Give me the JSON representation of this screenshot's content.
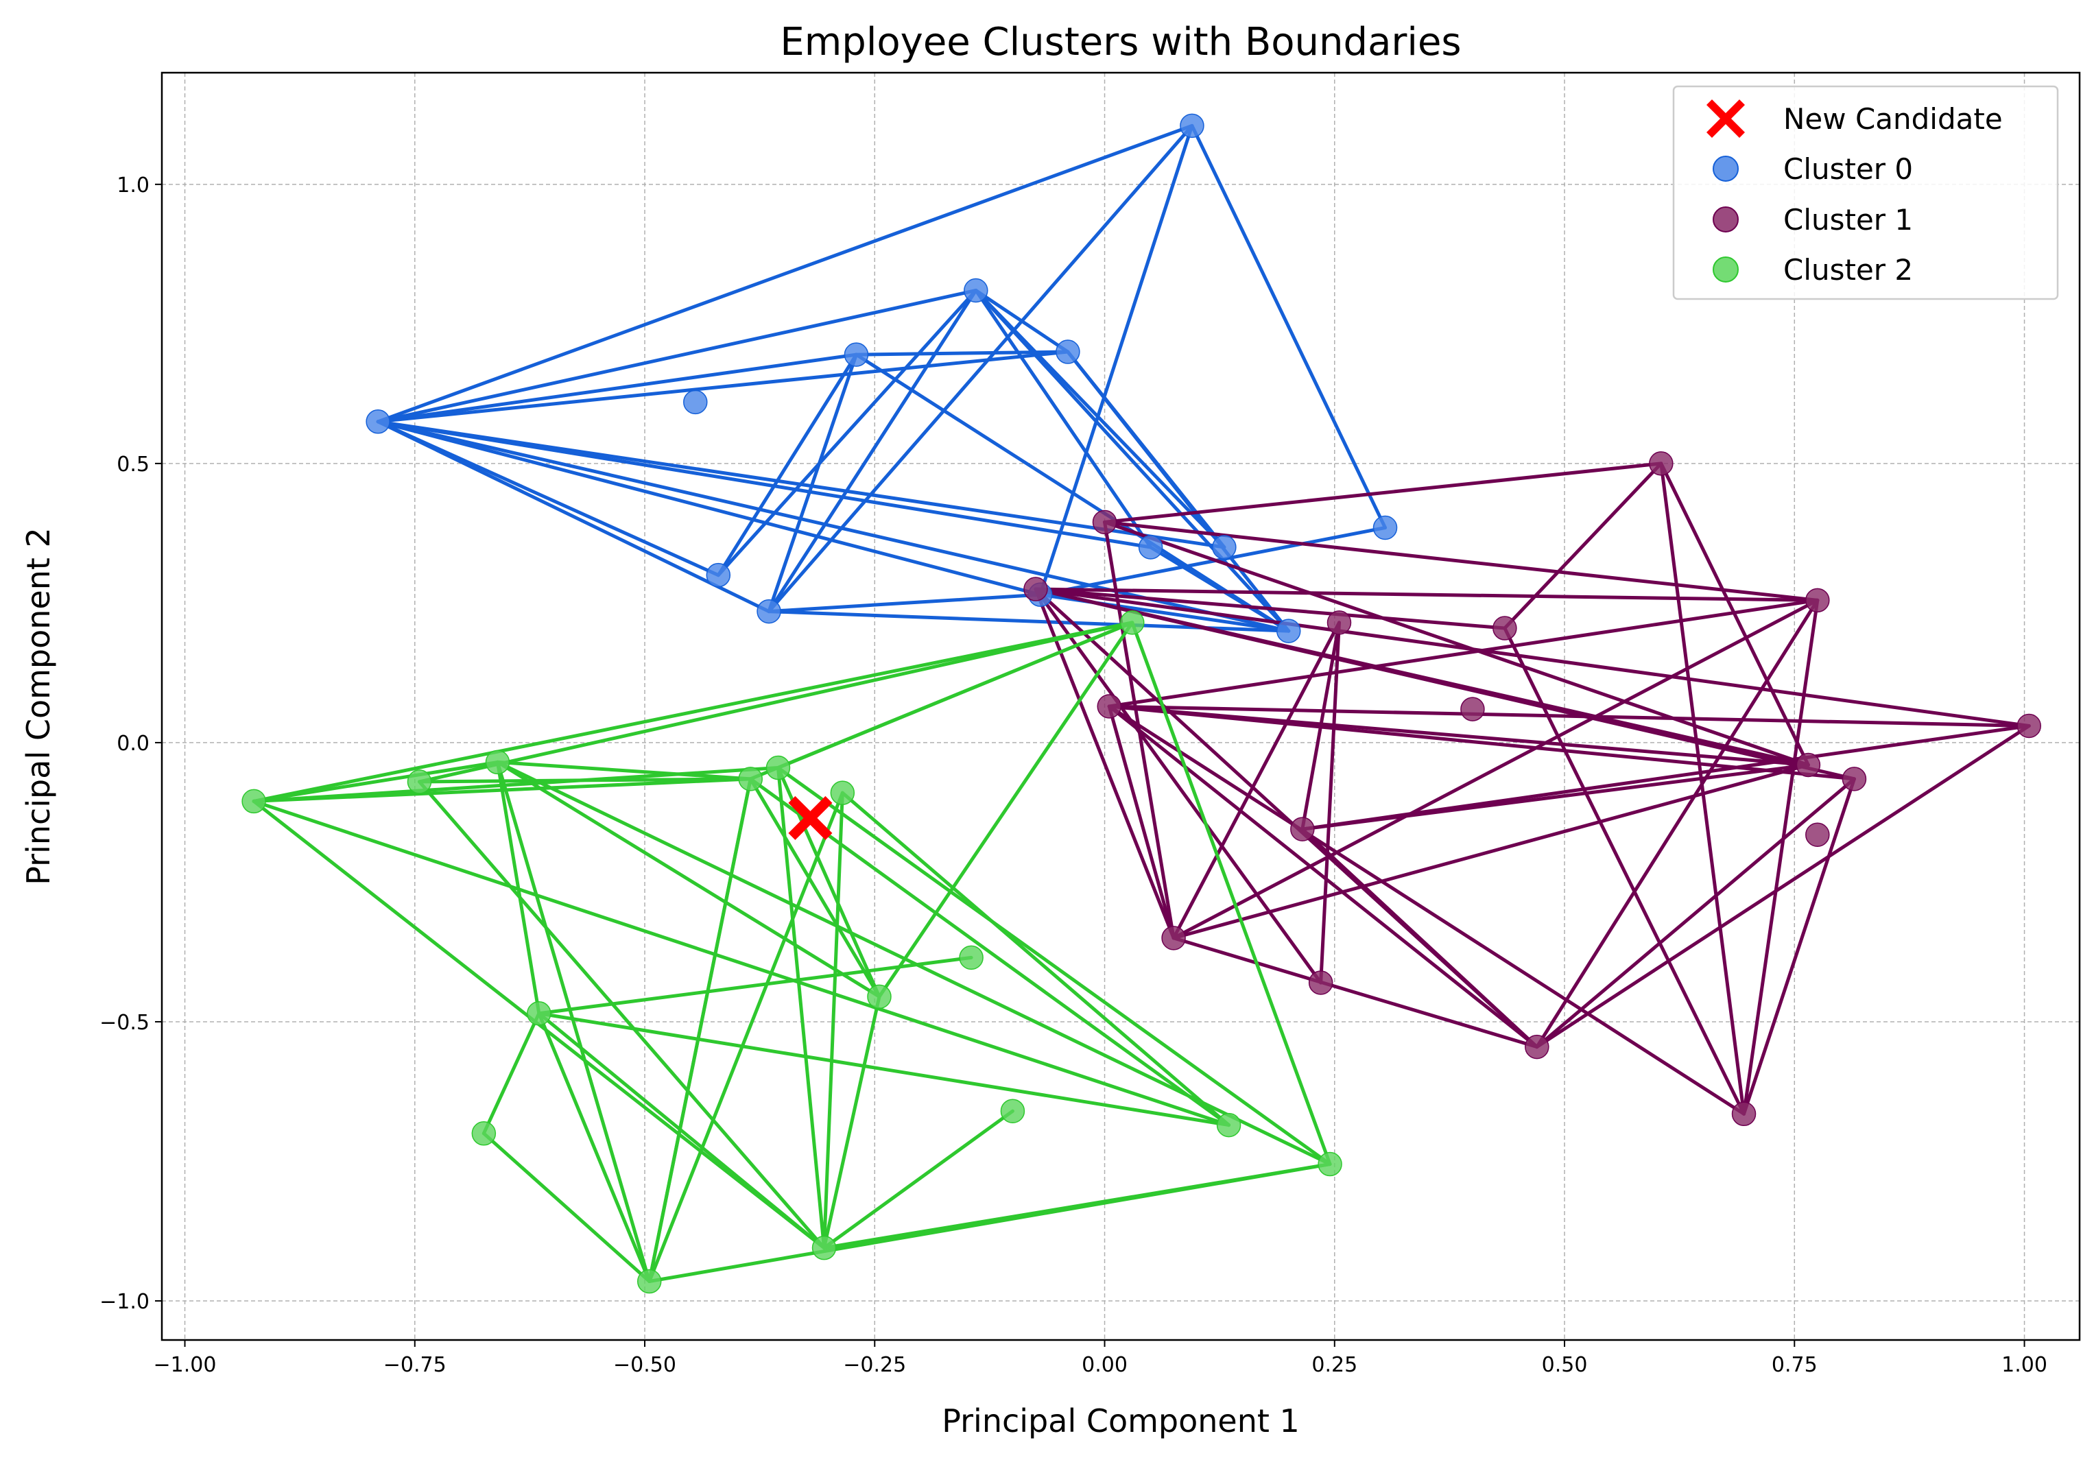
{
  "chart_data": {
    "type": "scatter",
    "title": "Employee Clusters with Boundaries",
    "xlabel": "Principal Component 1",
    "ylabel": "Principal Component 2",
    "xlim": [
      -1.025,
      1.06
    ],
    "ylim": [
      -1.07,
      1.2
    ],
    "xticks": [
      -1.0,
      -0.75,
      -0.5,
      -0.25,
      0.0,
      0.25,
      0.5,
      0.75,
      1.0
    ],
    "xtick_labels": [
      "−1.00",
      "−0.75",
      "−0.50",
      "−0.25",
      "0.00",
      "0.25",
      "0.50",
      "0.75",
      "1.00"
    ],
    "yticks": [
      -1.0,
      -0.5,
      0.0,
      0.5,
      1.0
    ],
    "ytick_labels": [
      "−1.0",
      "−0.5",
      "0.0",
      "0.5",
      "1.0"
    ],
    "grid": true,
    "legend_position": "top-right",
    "new_candidate": {
      "name": "New Candidate",
      "x": -0.32,
      "y": -0.135,
      "color": "#ff0000",
      "marker": "x"
    },
    "series": [
      {
        "name": "Cluster 0",
        "marker_color": "#4a86e8",
        "line_color": "#1560d8",
        "points": [
          [
            0.095,
            1.105
          ],
          [
            -0.14,
            0.81
          ],
          [
            -0.27,
            0.695
          ],
          [
            -0.04,
            0.7
          ],
          [
            -0.79,
            0.575
          ],
          [
            -0.445,
            0.61
          ],
          [
            0.305,
            0.385
          ],
          [
            0.13,
            0.35
          ],
          [
            0.05,
            0.35
          ],
          [
            -0.42,
            0.3
          ],
          [
            -0.365,
            0.235
          ],
          [
            -0.07,
            0.265
          ],
          [
            0.2,
            0.2
          ]
        ],
        "edges": [
          [
            4,
            0
          ],
          [
            4,
            1
          ],
          [
            4,
            2
          ],
          [
            4,
            3
          ],
          [
            4,
            9
          ],
          [
            4,
            10
          ],
          [
            4,
            11
          ],
          [
            4,
            12
          ],
          [
            4,
            8
          ],
          [
            4,
            7
          ],
          [
            0,
            10
          ],
          [
            0,
            6
          ],
          [
            0,
            11
          ],
          [
            1,
            10
          ],
          [
            1,
            9
          ],
          [
            1,
            3
          ],
          [
            1,
            7
          ],
          [
            1,
            12
          ],
          [
            1,
            8
          ],
          [
            2,
            9
          ],
          [
            2,
            3
          ],
          [
            2,
            12
          ],
          [
            2,
            10
          ],
          [
            3,
            12
          ],
          [
            3,
            7
          ],
          [
            10,
            11
          ],
          [
            10,
            12
          ],
          [
            11,
            6
          ],
          [
            11,
            12
          ],
          [
            8,
            12
          ]
        ]
      },
      {
        "name": "Cluster 1",
        "marker_color": "#8a2a68",
        "line_color": "#6e0050",
        "points": [
          [
            0.605,
            0.5
          ],
          [
            0.0,
            0.395
          ],
          [
            -0.075,
            0.275
          ],
          [
            0.775,
            0.255
          ],
          [
            0.255,
            0.215
          ],
          [
            0.435,
            0.205
          ],
          [
            0.4,
            0.06
          ],
          [
            0.005,
            0.065
          ],
          [
            1.005,
            0.03
          ],
          [
            0.765,
            -0.04
          ],
          [
            0.815,
            -0.065
          ],
          [
            0.775,
            -0.165
          ],
          [
            0.215,
            -0.155
          ],
          [
            0.075,
            -0.35
          ],
          [
            0.235,
            -0.43
          ],
          [
            0.47,
            -0.545
          ],
          [
            0.695,
            -0.665
          ]
        ],
        "edges": [
          [
            1,
            0
          ],
          [
            1,
            9
          ],
          [
            1,
            13
          ],
          [
            2,
            3
          ],
          [
            2,
            10
          ],
          [
            2,
            14
          ],
          [
            2,
            8
          ],
          [
            2,
            15
          ],
          [
            0,
            5
          ],
          [
            0,
            9
          ],
          [
            0,
            16
          ],
          [
            3,
            16
          ],
          [
            3,
            13
          ],
          [
            3,
            15
          ],
          [
            3,
            7
          ],
          [
            4,
            13
          ],
          [
            4,
            12
          ],
          [
            5,
            16
          ],
          [
            5,
            2
          ],
          [
            7,
            8
          ],
          [
            7,
            9
          ],
          [
            7,
            10
          ],
          [
            7,
            15
          ],
          [
            7,
            16
          ],
          [
            8,
            15
          ],
          [
            8,
            12
          ],
          [
            9,
            13
          ],
          [
            9,
            12
          ],
          [
            10,
            15
          ],
          [
            10,
            16
          ],
          [
            12,
            15
          ],
          [
            13,
            15
          ],
          [
            2,
            9
          ],
          [
            2,
            13
          ],
          [
            7,
            13
          ],
          [
            1,
            3
          ],
          [
            4,
            14
          ]
        ]
      },
      {
        "name": "Cluster 2",
        "marker_color": "#5cd65c",
        "line_color": "#2ec82e",
        "points": [
          [
            0.03,
            0.215
          ],
          [
            -0.925,
            -0.105
          ],
          [
            -0.745,
            -0.07
          ],
          [
            -0.66,
            -0.035
          ],
          [
            -0.385,
            -0.065
          ],
          [
            -0.355,
            -0.045
          ],
          [
            -0.285,
            -0.09
          ],
          [
            -0.145,
            -0.385
          ],
          [
            -0.245,
            -0.455
          ],
          [
            -0.615,
            -0.485
          ],
          [
            -0.1,
            -0.66
          ],
          [
            -0.675,
            -0.7
          ],
          [
            0.135,
            -0.685
          ],
          [
            0.245,
            -0.755
          ],
          [
            -0.305,
            -0.905
          ],
          [
            -0.495,
            -0.965
          ]
        ],
        "edges": [
          [
            0,
            1
          ],
          [
            0,
            2
          ],
          [
            0,
            4
          ],
          [
            0,
            8
          ],
          [
            0,
            13
          ],
          [
            0,
            5
          ],
          [
            1,
            4
          ],
          [
            1,
            5
          ],
          [
            1,
            14
          ],
          [
            1,
            12
          ],
          [
            1,
            3
          ],
          [
            2,
            14
          ],
          [
            3,
            4
          ],
          [
            3,
            15
          ],
          [
            3,
            13
          ],
          [
            3,
            8
          ],
          [
            4,
            12
          ],
          [
            4,
            8
          ],
          [
            4,
            15
          ],
          [
            5,
            13
          ],
          [
            5,
            8
          ],
          [
            6,
            14
          ],
          [
            9,
            7
          ],
          [
            9,
            12
          ],
          [
            9,
            14
          ],
          [
            9,
            3
          ],
          [
            9,
            15
          ],
          [
            11,
            15
          ],
          [
            11,
            9
          ],
          [
            14,
            13
          ],
          [
            15,
            13
          ],
          [
            15,
            4
          ],
          [
            14,
            5
          ],
          [
            6,
            15
          ],
          [
            2,
            4
          ],
          [
            8,
            14
          ],
          [
            10,
            14
          ],
          [
            6,
            12
          ]
        ]
      }
    ]
  }
}
